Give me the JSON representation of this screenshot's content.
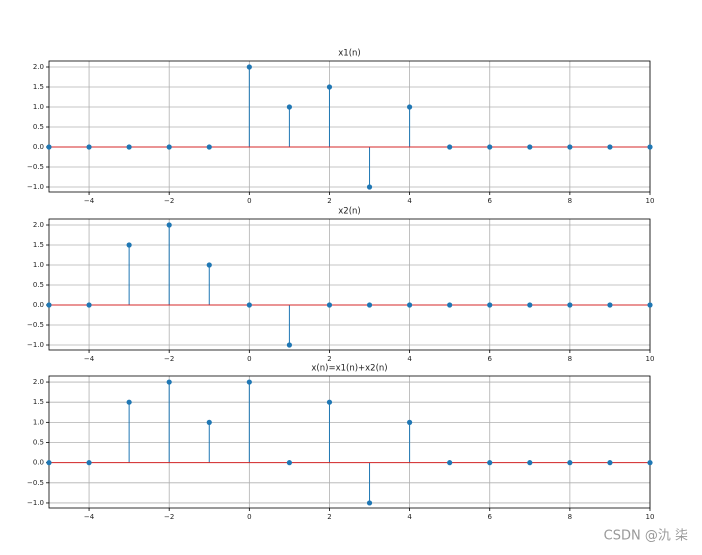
{
  "chart_data": [
    {
      "type": "stem",
      "title": "x1(n)",
      "x": [
        -5,
        -4,
        -3,
        -2,
        -1,
        0,
        1,
        2,
        3,
        4,
        5,
        6,
        7,
        8,
        9,
        10
      ],
      "values": [
        0,
        0,
        0,
        0,
        0,
        2,
        1,
        1.5,
        -1,
        1,
        0,
        0,
        0,
        0,
        0,
        0
      ],
      "color": "#1f77b4",
      "baseline_color": "#d62728",
      "xlim": [
        -5,
        10
      ],
      "xticks": [
        {
          "value": -4,
          "label": "−4"
        },
        {
          "value": -2,
          "label": "−2"
        },
        0,
        2,
        4,
        6,
        8,
        10
      ],
      "ylim": [
        -1.125,
        2.15
      ],
      "yticks": [
        {
          "value": -1,
          "label": "−1.0"
        },
        {
          "value": -0.5,
          "label": "−0.5"
        },
        {
          "value": 0,
          "label": "0.0"
        },
        {
          "value": 0.5,
          "label": "0.5"
        },
        {
          "value": 1,
          "label": "1.0"
        },
        {
          "value": 1.5,
          "label": "1.5"
        },
        {
          "value": 2,
          "label": "2.0"
        }
      ],
      "grid": true
    },
    {
      "type": "stem",
      "title": "x2(n)",
      "x": [
        -5,
        -4,
        -3,
        -2,
        -1,
        0,
        1,
        2,
        3,
        4,
        5,
        6,
        7,
        8,
        9,
        10
      ],
      "values": [
        0,
        0,
        1.5,
        2,
        1,
        0,
        -1,
        0,
        0,
        0,
        0,
        0,
        0,
        0,
        0,
        0
      ],
      "color": "#1f77b4",
      "baseline_color": "#d62728",
      "xlim": [
        -5,
        10
      ],
      "xticks": [
        {
          "value": -4,
          "label": "−4"
        },
        {
          "value": -2,
          "label": "−2"
        },
        0,
        2,
        4,
        6,
        8,
        10
      ],
      "ylim": [
        -1.125,
        2.15
      ],
      "yticks": [
        {
          "value": -1,
          "label": "−1.0"
        },
        {
          "value": -0.5,
          "label": "−0.5"
        },
        {
          "value": 0,
          "label": "0.0"
        },
        {
          "value": 0.5,
          "label": "0.5"
        },
        {
          "value": 1,
          "label": "1.0"
        },
        {
          "value": 1.5,
          "label": "1.5"
        },
        {
          "value": 2,
          "label": "2.0"
        }
      ],
      "grid": true
    },
    {
      "type": "stem",
      "title": "x(n)=x1(n)+x2(n)",
      "x": [
        -5,
        -4,
        -3,
        -2,
        -1,
        0,
        1,
        2,
        3,
        4,
        5,
        6,
        7,
        8,
        9,
        10
      ],
      "values": [
        0,
        0,
        1.5,
        2,
        1,
        2,
        0,
        1.5,
        -1,
        1,
        0,
        0,
        0,
        0,
        0,
        0
      ],
      "color": "#1f77b4",
      "baseline_color": "#d62728",
      "xlim": [
        -5,
        10
      ],
      "xticks": [
        {
          "value": -4,
          "label": "−4"
        },
        {
          "value": -2,
          "label": "−2"
        },
        0,
        2,
        4,
        6,
        8,
        10
      ],
      "ylim": [
        -1.125,
        2.15
      ],
      "yticks": [
        {
          "value": -1,
          "label": "−1.0"
        },
        {
          "value": -0.5,
          "label": "−0.5"
        },
        {
          "value": 0,
          "label": "0.0"
        },
        {
          "value": 0.5,
          "label": "0.5"
        },
        {
          "value": 1,
          "label": "1.0"
        },
        {
          "value": 1.5,
          "label": "1.5"
        },
        {
          "value": 2,
          "label": "2.0"
        }
      ],
      "grid": true
    }
  ],
  "watermark": "CSDN @氿  柒"
}
